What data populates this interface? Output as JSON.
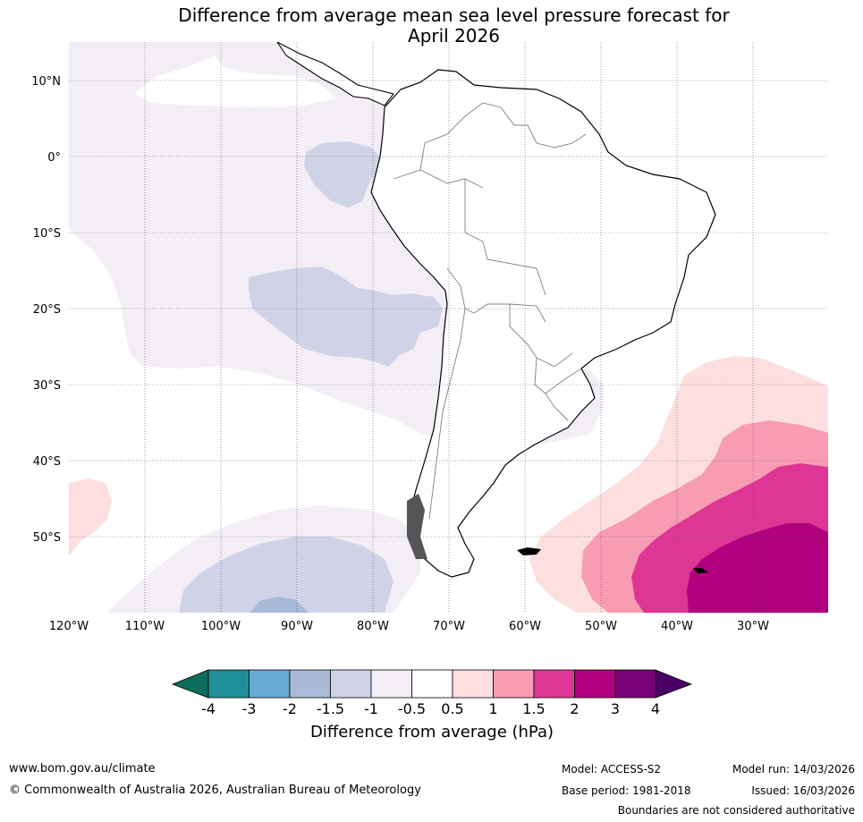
{
  "title": {
    "line1": "Difference from average mean sea level pressure forecast for",
    "line2": "April 2026"
  },
  "map": {
    "lat_labels": [
      "10°N",
      "0°",
      "10°S",
      "20°S",
      "30°S",
      "40°S",
      "50°S"
    ],
    "lon_labels": [
      "120°W",
      "110°W",
      "100°W",
      "90°W",
      "80°W",
      "70°W",
      "60°W",
      "50°W",
      "40°W",
      "30°W"
    ]
  },
  "colorbar": {
    "title": "Difference from average (hPa)",
    "labels": [
      "-4",
      "-3",
      "-2",
      "-1.5",
      "-1",
      "-0.5",
      "0.5",
      "1",
      "1.5",
      "2",
      "3",
      "4"
    ],
    "colors": [
      "#0e6e5c",
      "#1f9097",
      "#69aad2",
      "#a8bad8",
      "#d0d3e6",
      "#f3eef6",
      "#ffffff",
      "#fddfdf",
      "#f89cb4",
      "#de3695",
      "#b1007d",
      "#7a0177",
      "#4b0063"
    ]
  },
  "footer": {
    "url": "www.bom.gov.au/climate",
    "copyright": "© Commonwealth of Australia 2026, Australian Bureau of Meteorology",
    "model": "Model: ACCESS-S2",
    "base_period": "Base period: 1981-2018",
    "model_run": "Model run: 14/03/2026",
    "issued": "Issued: 16/03/2026",
    "disclaimer": "Boundaries are not considered authoritative"
  }
}
